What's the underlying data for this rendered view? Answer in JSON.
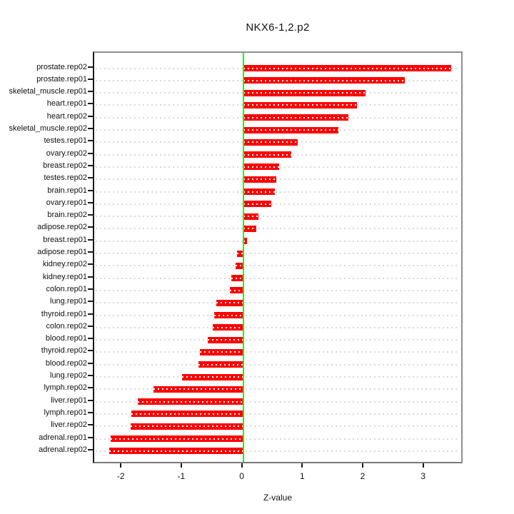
{
  "chart_data": {
    "type": "bar",
    "orientation": "horizontal",
    "title": "NKX6-1,2.p2",
    "xlabel": "Z-value",
    "ylabel": "",
    "xlim": [
      -2.46,
      3.65
    ],
    "xticks": [
      -2,
      -1,
      0,
      1,
      2,
      3
    ],
    "grid": "dotted-horizontal-per-row",
    "legend": "none",
    "zero_reference_line": 0,
    "categories": [
      "prostate.rep02",
      "prostate.rep01",
      "skeletal_muscle.rep01",
      "heart.rep01",
      "heart.rep02",
      "skeletal_muscle.rep02",
      "testes.rep01",
      "ovary.rep02",
      "breast.rep02",
      "testes.rep02",
      "brain.rep01",
      "ovary.rep01",
      "brain.rep02",
      "adipose.rep02",
      "breast.rep01",
      "adipose.rep01",
      "kidney.rep02",
      "kidney.rep01",
      "colon.rep01",
      "lung.rep01",
      "thyroid.rep01",
      "colon.rep02",
      "blood.rep01",
      "thyroid.rep02",
      "blood.rep02",
      "lung.rep02",
      "lymph.rep02",
      "liver.rep01",
      "lymph.rep01",
      "liver.rep02",
      "adrenal.rep01",
      "adrenal.rep02"
    ],
    "values": [
      3.44,
      2.67,
      2.02,
      1.88,
      1.74,
      1.58,
      0.9,
      0.8,
      0.6,
      0.55,
      0.52,
      0.47,
      0.25,
      0.22,
      0.06,
      -0.1,
      -0.13,
      -0.2,
      -0.22,
      -0.44,
      -0.48,
      -0.5,
      -0.58,
      -0.71,
      -0.74,
      -1.01,
      -1.48,
      -1.74,
      -1.85,
      -1.86,
      -2.19,
      -2.21
    ],
    "colors": {
      "bar": "#ff0000",
      "bar_inner_dots": "#ffffff",
      "zero_line": "#00ff00",
      "grid": "#d8d8d8",
      "box": "#909090",
      "axis": "#1a1a1a",
      "text": "#111111",
      "background": "#ffffff"
    }
  }
}
